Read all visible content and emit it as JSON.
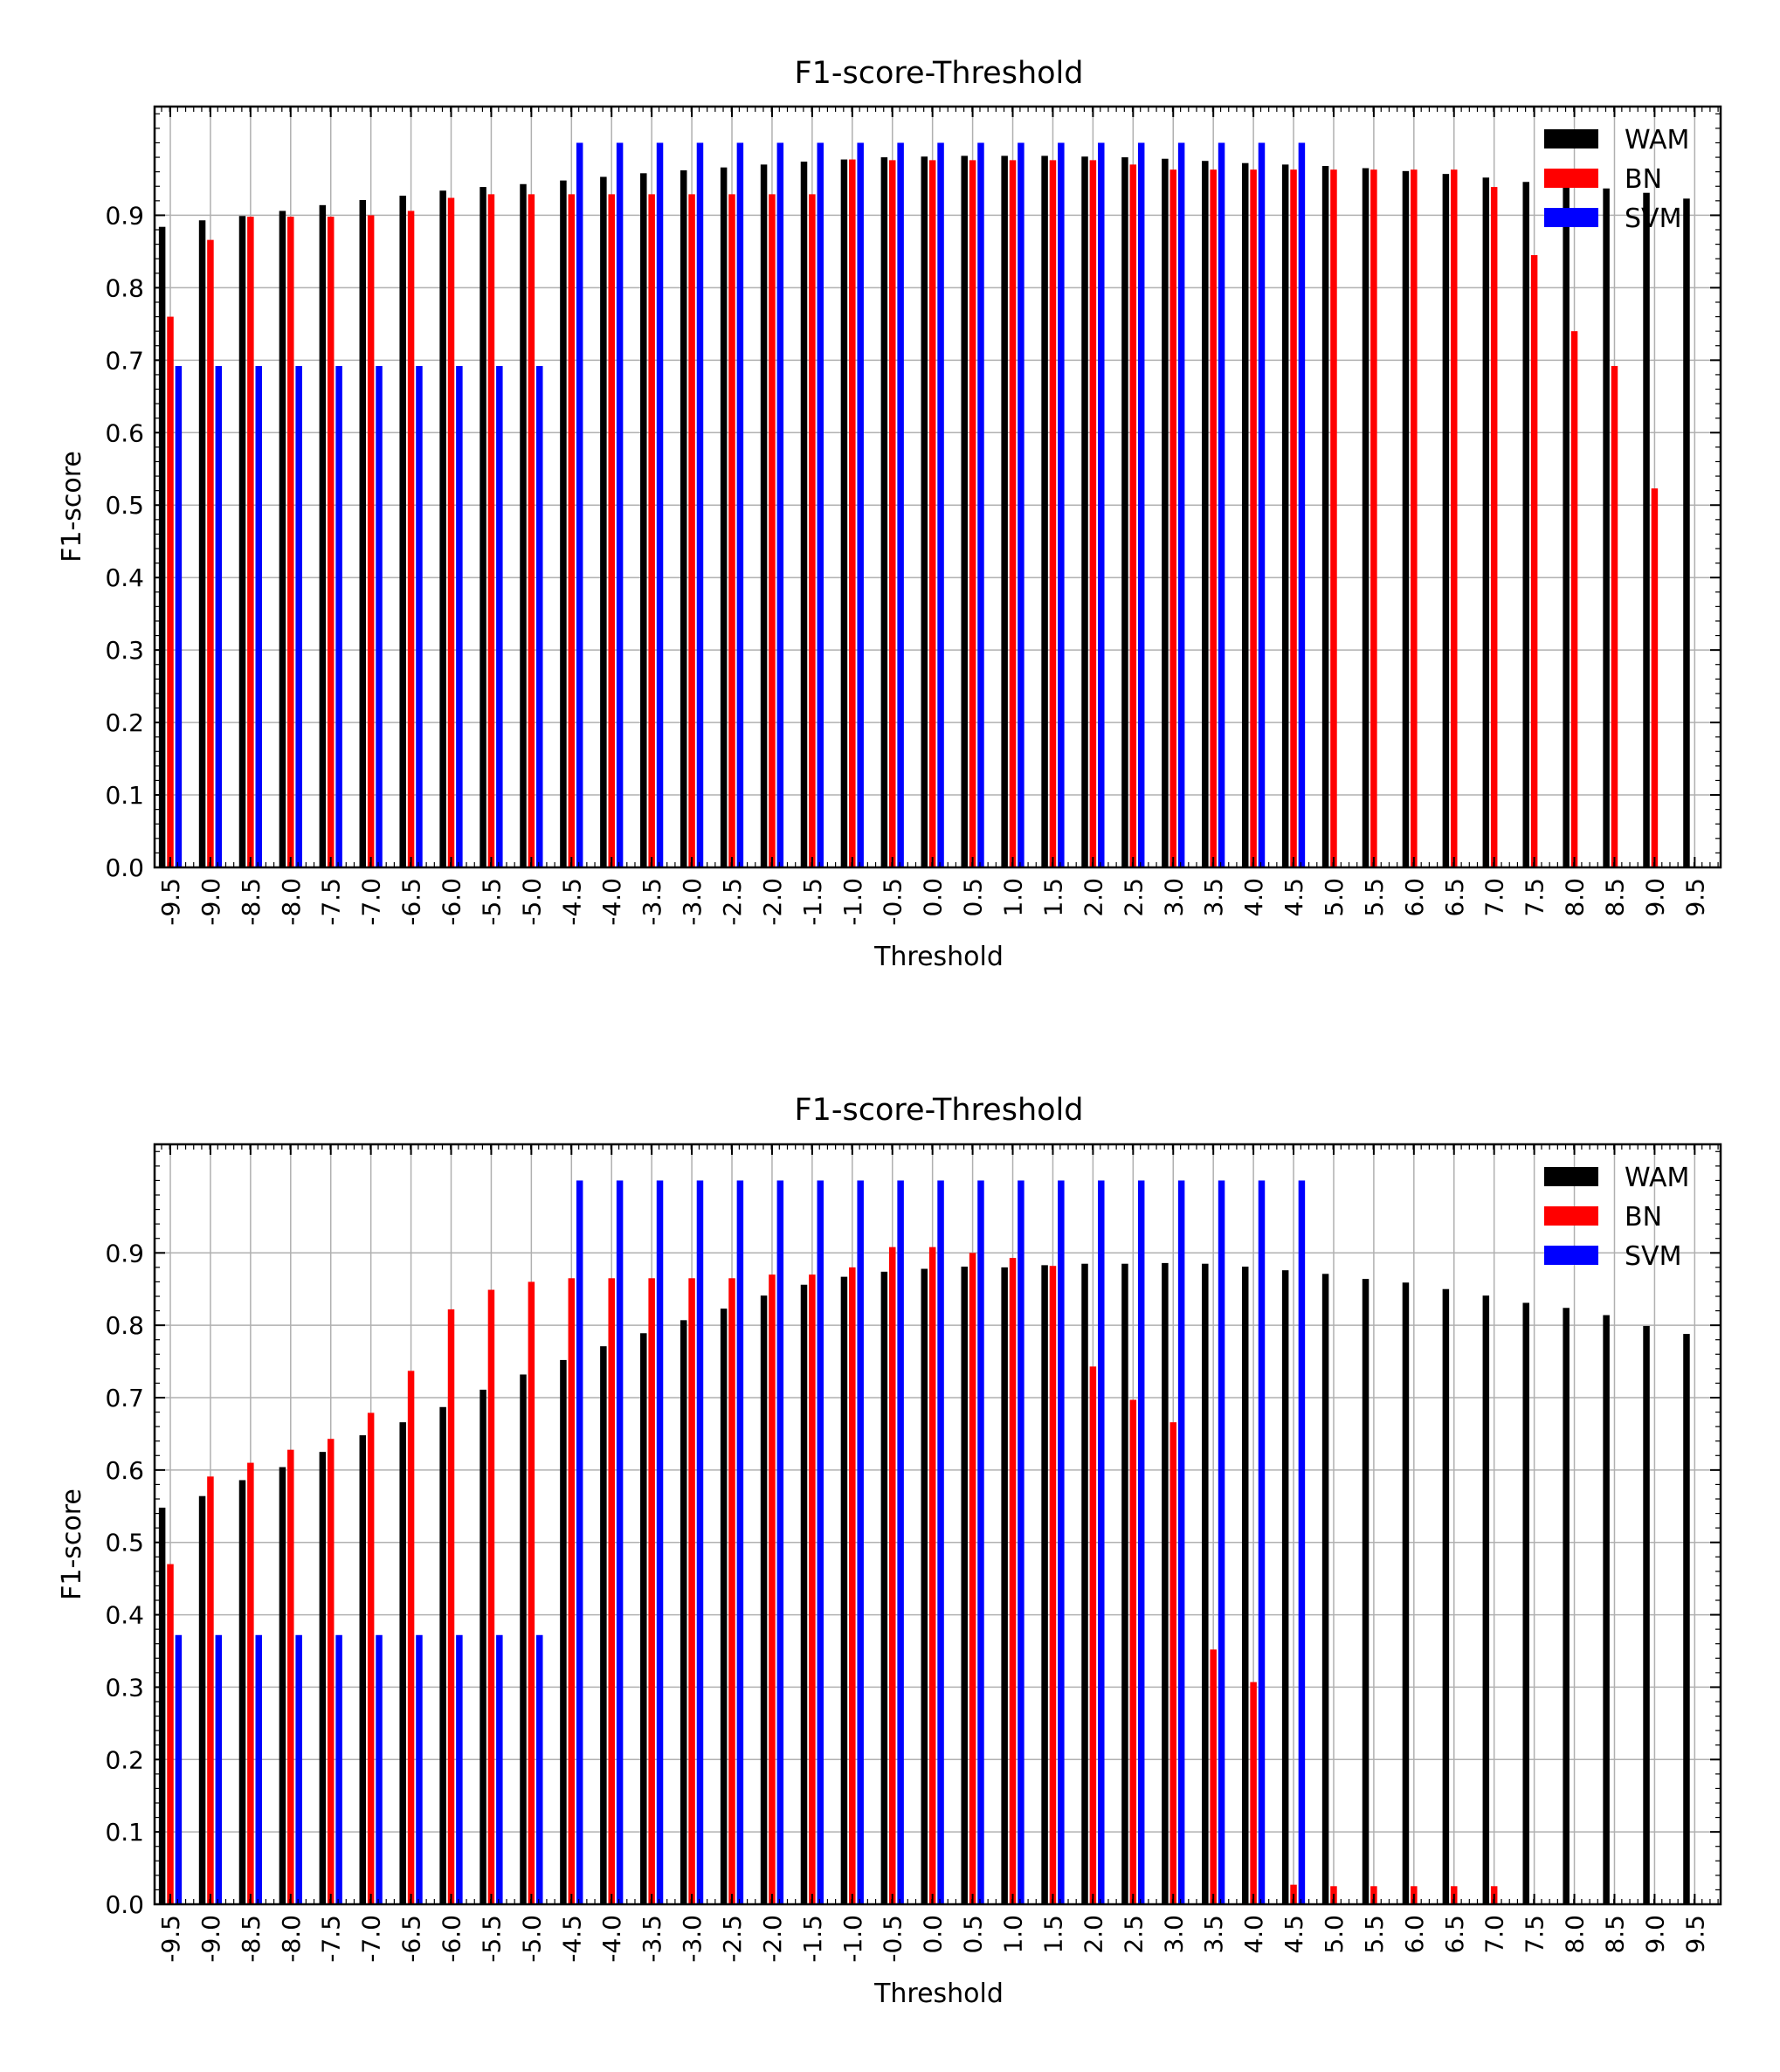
{
  "colors": {
    "WAM": "#000000",
    "BN": "#ff0000",
    "SVM": "#0000ff",
    "grid": "#b0b0b0"
  },
  "chart_data": [
    {
      "type": "bar",
      "title": "F1-score-Threshold",
      "xlabel": "Threshold",
      "ylabel": "F1-score",
      "ylim": [
        0,
        1.05
      ],
      "yticks": [
        "0.0",
        "0.1",
        "0.2",
        "0.3",
        "0.4",
        "0.5",
        "0.6",
        "0.7",
        "0.8",
        "0.9"
      ],
      "grid": true,
      "legend": "top-right",
      "categories": [
        "-9.5",
        "-9.0",
        "-8.5",
        "-8.0",
        "-7.5",
        "-7.0",
        "-6.5",
        "-6.0",
        "-5.5",
        "-5.0",
        "-4.5",
        "-4.0",
        "-3.5",
        "-3.0",
        "-2.5",
        "-2.0",
        "-1.5",
        "-1.0",
        "-0.5",
        "0.0",
        "0.5",
        "1.0",
        "1.5",
        "2.0",
        "2.5",
        "3.0",
        "3.5",
        "4.0",
        "4.5",
        "5.0",
        "5.5",
        "6.0",
        "6.5",
        "7.0",
        "7.5",
        "8.0",
        "8.5",
        "9.0",
        "9.5"
      ],
      "series": [
        {
          "name": "WAM",
          "values": [
            0.884,
            0.893,
            0.899,
            0.906,
            0.914,
            0.921,
            0.927,
            0.934,
            0.939,
            0.943,
            0.948,
            0.953,
            0.958,
            0.962,
            0.966,
            0.97,
            0.974,
            0.977,
            0.98,
            0.981,
            0.982,
            0.982,
            0.982,
            0.981,
            0.98,
            0.978,
            0.975,
            0.972,
            0.97,
            0.968,
            0.965,
            0.961,
            0.957,
            0.952,
            0.946,
            0.942,
            0.937,
            0.931,
            0.923
          ]
        },
        {
          "name": "BN",
          "values": [
            0.76,
            0.866,
            0.898,
            0.898,
            0.898,
            0.9,
            0.906,
            0.924,
            0.929,
            0.929,
            0.929,
            0.929,
            0.929,
            0.929,
            0.929,
            0.929,
            0.929,
            0.977,
            0.976,
            0.976,
            0.976,
            0.976,
            0.976,
            0.976,
            0.97,
            0.963,
            0.963,
            0.963,
            0.963,
            0.963,
            0.963,
            0.963,
            0.963,
            0.939,
            0.845,
            0.74,
            0.692,
            0.523,
            0
          ]
        },
        {
          "name": "SVM",
          "values": [
            0.692,
            0.692,
            0.692,
            0.692,
            0.692,
            0.692,
            0.692,
            0.692,
            0.692,
            0.692,
            1.0,
            1.0,
            1.0,
            1.0,
            1.0,
            1.0,
            1.0,
            1.0,
            1.0,
            1.0,
            1.0,
            1.0,
            1.0,
            1.0,
            1.0,
            1.0,
            1.0,
            1.0,
            1.0,
            0,
            0,
            0,
            0,
            0,
            0,
            0,
            0,
            0,
            0
          ]
        }
      ]
    },
    {
      "type": "bar",
      "title": "F1-score-Threshold",
      "xlabel": "Threshold",
      "ylabel": "F1-score",
      "ylim": [
        0,
        1.05
      ],
      "yticks": [
        "0.0",
        "0.1",
        "0.2",
        "0.3",
        "0.4",
        "0.5",
        "0.6",
        "0.7",
        "0.8",
        "0.9"
      ],
      "grid": true,
      "legend": "top-right",
      "categories": [
        "-9.5",
        "-9.0",
        "-8.5",
        "-8.0",
        "-7.5",
        "-7.0",
        "-6.5",
        "-6.0",
        "-5.5",
        "-5.0",
        "-4.5",
        "-4.0",
        "-3.5",
        "-3.0",
        "-2.5",
        "-2.0",
        "-1.5",
        "-1.0",
        "-0.5",
        "0.0",
        "0.5",
        "1.0",
        "1.5",
        "2.0",
        "2.5",
        "3.0",
        "3.5",
        "4.0",
        "4.5",
        "5.0",
        "5.5",
        "6.0",
        "6.5",
        "7.0",
        "7.5",
        "8.0",
        "8.5",
        "9.0",
        "9.5"
      ],
      "series": [
        {
          "name": "WAM",
          "values": [
            0.548,
            0.564,
            0.586,
            0.604,
            0.625,
            0.648,
            0.666,
            0.687,
            0.711,
            0.732,
            0.752,
            0.771,
            0.789,
            0.807,
            0.823,
            0.841,
            0.856,
            0.867,
            0.874,
            0.878,
            0.881,
            0.88,
            0.883,
            0.885,
            0.885,
            0.886,
            0.885,
            0.881,
            0.876,
            0.871,
            0.864,
            0.859,
            0.85,
            0.841,
            0.831,
            0.824,
            0.814,
            0.799,
            0.788
          ]
        },
        {
          "name": "BN",
          "values": [
            0.47,
            0.591,
            0.61,
            0.628,
            0.643,
            0.679,
            0.737,
            0.822,
            0.849,
            0.86,
            0.865,
            0.865,
            0.865,
            0.865,
            0.865,
            0.87,
            0.87,
            0.88,
            0.908,
            0.908,
            0.9,
            0.893,
            0.882,
            0.743,
            0.697,
            0.666,
            0.352,
            0.307,
            0.027,
            0.025,
            0.025,
            0.025,
            0.025,
            0.025,
            0,
            0,
            0,
            0,
            0
          ]
        },
        {
          "name": "SVM",
          "values": [
            0.372,
            0.372,
            0.372,
            0.372,
            0.372,
            0.372,
            0.372,
            0.372,
            0.372,
            0.372,
            1.0,
            1.0,
            1.0,
            1.0,
            1.0,
            1.0,
            1.0,
            1.0,
            1.0,
            1.0,
            1.0,
            1.0,
            1.0,
            1.0,
            1.0,
            1.0,
            1.0,
            1.0,
            1.0,
            0,
            0,
            0,
            0,
            0,
            0,
            0,
            0,
            0,
            0
          ]
        }
      ]
    }
  ]
}
